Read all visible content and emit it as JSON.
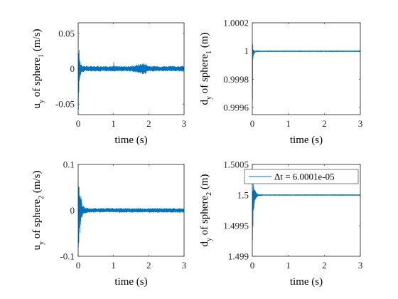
{
  "figure": {
    "background": "#ffffff",
    "line_color": "#0072BD"
  },
  "chart_data": [
    {
      "type": "line",
      "xlabel": "time (s)",
      "ylabel": {
        "main": "u",
        "y_sub": "y",
        "middle": " of sphere",
        "sphere_sub": "1",
        "unit": " (m/s)"
      },
      "xlim": [
        0,
        3
      ],
      "ylim": [
        -0.065,
        0.065
      ],
      "xticks": [
        0,
        1,
        2,
        3
      ],
      "xtick_labels": [
        "0",
        "1",
        "2",
        "3"
      ],
      "yticks": [
        -0.05,
        0,
        0.05
      ],
      "ytick_labels": [
        "-0.05",
        "0",
        "0.05"
      ],
      "grid": false,
      "series": [
        {
          "x": [
            0,
            0.005,
            0.01,
            0.02,
            0.03,
            0.04,
            0.05,
            0.06,
            0.08,
            0.1,
            0.15,
            0.2,
            0.5,
            1.0,
            1.005,
            1.01,
            1.5,
            1.9,
            1.95,
            2.0,
            2.5,
            3.0
          ],
          "min": [
            -0.065,
            -0.063,
            -0.055,
            -0.045,
            -0.03,
            -0.02,
            -0.015,
            -0.012,
            -0.008,
            -0.006,
            -0.005,
            -0.004,
            -0.004,
            -0.004,
            -0.018,
            -0.004,
            -0.004,
            -0.009,
            -0.006,
            -0.004,
            -0.004,
            -0.004
          ],
          "max": [
            0.065,
            0.063,
            0.045,
            0.035,
            0.025,
            0.018,
            0.012,
            0.01,
            0.008,
            0.006,
            0.005,
            0.004,
            0.004,
            0.004,
            0.017,
            0.004,
            0.004,
            0.009,
            0.006,
            0.004,
            0.004,
            0.004
          ]
        }
      ]
    },
    {
      "type": "line",
      "xlabel": "time (s)",
      "ylabel": {
        "main": "d",
        "y_sub": "y",
        "middle": " of sphere",
        "sphere_sub": "1",
        "unit": " (m)"
      },
      "xlim": [
        0,
        3
      ],
      "ylim": [
        0.99955,
        1.0002
      ],
      "xticks": [
        0,
        1,
        2,
        3
      ],
      "xtick_labels": [
        "0",
        "1",
        "2",
        "3"
      ],
      "yticks": [
        0.9996,
        0.9998,
        1,
        1.0002
      ],
      "ytick_labels": [
        "0.9996",
        "0.9998",
        "1",
        "1.0002"
      ],
      "grid": false,
      "series": [
        {
          "x": [
            0,
            0.005,
            0.01,
            0.015,
            0.02,
            0.03,
            0.04,
            0.06,
            0.08,
            0.12,
            0.2,
            1.9,
            1.91,
            1.92,
            3.0
          ],
          "min": [
            0.99955,
            0.99958,
            0.99975,
            0.99985,
            0.99992,
            0.99995,
            0.99997,
            0.99998,
            0.99999,
            0.999995,
            0.999996,
            0.999996,
            0.99999,
            0.999996,
            0.999996
          ],
          "max": [
            1.0002,
            1.0002,
            1.00008,
            1.00005,
            1.00003,
            1.00002,
            1.00001,
            1.000005,
            1.000003,
            1.000002,
            1.000001,
            1.000001,
            1.000008,
            1.000001,
            1.000001
          ]
        }
      ]
    },
    {
      "type": "line",
      "xlabel": "time (s)",
      "ylabel": {
        "main": "u",
        "y_sub": "y",
        "middle": " of sphere",
        "sphere_sub": "2",
        "unit": " (m/s)"
      },
      "xlim": [
        0,
        3
      ],
      "ylim": [
        -0.1,
        0.1
      ],
      "xticks": [
        0,
        1,
        2,
        3
      ],
      "xtick_labels": [
        "0",
        "1",
        "2",
        "3"
      ],
      "yticks": [
        -0.1,
        0,
        0.1
      ],
      "ytick_labels": [
        "-0.1",
        "0",
        "0.1"
      ],
      "grid": false,
      "series": [
        {
          "x": [
            0,
            0.01,
            0.02,
            0.04,
            0.06,
            0.08,
            0.1,
            0.12,
            0.15,
            0.2,
            0.3,
            1.0,
            2.0,
            3.0
          ],
          "min": [
            -0.085,
            -0.09,
            -0.08,
            -0.055,
            -0.04,
            -0.03,
            -0.022,
            -0.015,
            -0.01,
            -0.007,
            -0.005,
            -0.005,
            -0.005,
            -0.005
          ],
          "max": [
            0.085,
            0.075,
            0.07,
            0.05,
            0.04,
            0.03,
            0.022,
            0.015,
            0.01,
            0.007,
            0.005,
            0.005,
            0.005,
            0.005
          ]
        }
      ]
    },
    {
      "type": "line",
      "xlabel": "time (s)",
      "ylabel": {
        "main": "d",
        "y_sub": "y",
        "middle": " of sphere",
        "sphere_sub": "2",
        "unit": " (m)"
      },
      "xlim": [
        0,
        3
      ],
      "ylim": [
        1.499,
        1.5005
      ],
      "xticks": [
        0,
        1,
        2,
        3
      ],
      "xtick_labels": [
        "0",
        "1",
        "2",
        "3"
      ],
      "yticks": [
        1.499,
        1.4995,
        1.5,
        1.5005
      ],
      "ytick_labels": [
        "1.499",
        "1.4995",
        "1.5",
        "1.5005"
      ],
      "grid": false,
      "legend": {
        "position": "top-right",
        "entries": [
          "Δt = 6.0001e-05"
        ]
      },
      "series": [
        {
          "name": "Δt = 6.0001e-05",
          "x": [
            0,
            0.01,
            0.02,
            0.03,
            0.05,
            0.07,
            0.1,
            0.13,
            0.16,
            0.2,
            0.3,
            3.0
          ],
          "min": [
            1.4991,
            1.4992,
            1.4994,
            1.4996,
            1.4998,
            1.49988,
            1.49993,
            1.49996,
            1.49998,
            1.49999,
            1.499995,
            1.499995
          ],
          "max": [
            1.5003,
            1.5003,
            1.50025,
            1.5002,
            1.50015,
            1.5001,
            1.50006,
            1.50004,
            1.50002,
            1.50001,
            1.500005,
            1.500005
          ]
        }
      ]
    }
  ]
}
